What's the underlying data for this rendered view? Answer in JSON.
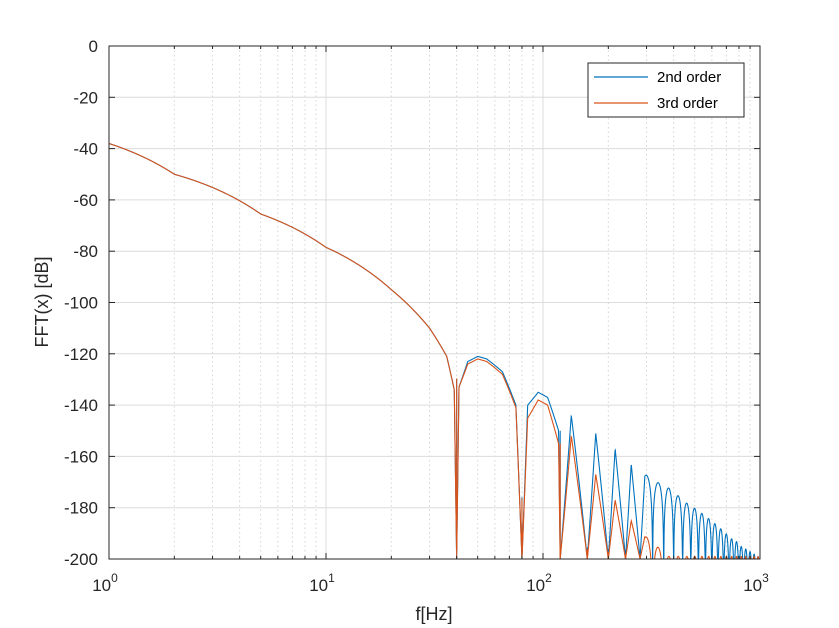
{
  "chart_data": {
    "type": "line",
    "xscale": "log",
    "xlim": [
      1,
      1000
    ],
    "ylim": [
      -200,
      0
    ],
    "grid": "on (major and minor)",
    "legend_placement": "top-right",
    "xlabel": "f[Hz]",
    "ylabel": "FFT(x) [dB]",
    "title": "",
    "yticks": [
      "0",
      "-20",
      "-40",
      "-60",
      "-80",
      "-100",
      "-120",
      "-140",
      "-160",
      "-180",
      "-200"
    ],
    "xticks": [
      {
        "base": "10",
        "exp": "0"
      },
      {
        "base": "10",
        "exp": "1"
      },
      {
        "base": "10",
        "exp": "2"
      },
      {
        "base": "10",
        "exp": "3"
      }
    ],
    "notch_spacing_hz": 40,
    "series": [
      {
        "name": "2nd order",
        "color": "#0072BD",
        "points": [
          [
            1,
            -38
          ],
          [
            2,
            -50
          ],
          [
            5,
            -65.5
          ],
          [
            10,
            -78.5
          ],
          [
            20,
            -95
          ],
          [
            30,
            -110
          ],
          [
            36,
            -121
          ],
          [
            39,
            -134
          ],
          [
            40,
            -200
          ],
          [
            41,
            -133
          ],
          [
            45,
            -123
          ],
          [
            50,
            -121
          ],
          [
            55,
            -122
          ],
          [
            65,
            -127
          ],
          [
            75,
            -140
          ],
          [
            80,
            -200
          ],
          [
            85,
            -140
          ],
          [
            95,
            -135
          ],
          [
            105,
            -137
          ],
          [
            118,
            -150
          ],
          [
            120,
            -200
          ],
          [
            135,
            -144
          ],
          [
            160,
            -200
          ],
          [
            175,
            -151
          ],
          [
            200,
            -200
          ],
          [
            215,
            -157
          ],
          [
            240,
            -200
          ],
          [
            255,
            -163
          ],
          [
            280,
            -200
          ],
          [
            295,
            -167
          ]
        ],
        "peak_envelope": [
          [
            50,
            -121
          ],
          [
            95,
            -135
          ],
          [
            135,
            -144
          ],
          [
            175,
            -151
          ],
          [
            215,
            -157
          ],
          [
            255,
            -163
          ],
          [
            295,
            -167
          ],
          [
            335,
            -170
          ],
          [
            375,
            -172
          ],
          [
            415,
            -175
          ],
          [
            455,
            -178
          ],
          [
            495,
            -180
          ],
          [
            535,
            -182
          ],
          [
            575,
            -184
          ],
          [
            615,
            -186
          ],
          [
            655,
            -188
          ],
          [
            695,
            -190
          ],
          [
            735,
            -192
          ],
          [
            775,
            -193
          ],
          [
            815,
            -195
          ],
          [
            855,
            -196
          ],
          [
            895,
            -197
          ],
          [
            935,
            -198
          ],
          [
            975,
            -199
          ]
        ]
      },
      {
        "name": "3rd order",
        "color": "#D95319",
        "points": [
          [
            1,
            -38
          ],
          [
            2,
            -50
          ],
          [
            5,
            -65.5
          ],
          [
            10,
            -78.5
          ],
          [
            20,
            -95
          ],
          [
            30,
            -110
          ],
          [
            36,
            -121
          ],
          [
            39,
            -134
          ],
          [
            40,
            -200
          ],
          [
            41,
            -133
          ],
          [
            45,
            -124
          ],
          [
            50,
            -122
          ],
          [
            55,
            -123
          ],
          [
            65,
            -128
          ],
          [
            75,
            -141
          ],
          [
            80,
            -200
          ],
          [
            85,
            -145
          ],
          [
            95,
            -138
          ],
          [
            105,
            -140
          ],
          [
            118,
            -155
          ],
          [
            120,
            -200
          ],
          [
            135,
            -152
          ],
          [
            160,
            -200
          ],
          [
            175,
            -167
          ],
          [
            200,
            -200
          ],
          [
            215,
            -177
          ],
          [
            240,
            -200
          ],
          [
            255,
            -185
          ],
          [
            280,
            -200
          ],
          [
            295,
            -191
          ]
        ],
        "peak_envelope": [
          [
            50,
            -122
          ],
          [
            95,
            -138
          ],
          [
            135,
            -152
          ],
          [
            175,
            -167
          ],
          [
            215,
            -177
          ],
          [
            255,
            -185
          ],
          [
            295,
            -191
          ],
          [
            335,
            -195
          ],
          [
            375,
            -199
          ]
        ]
      }
    ]
  }
}
